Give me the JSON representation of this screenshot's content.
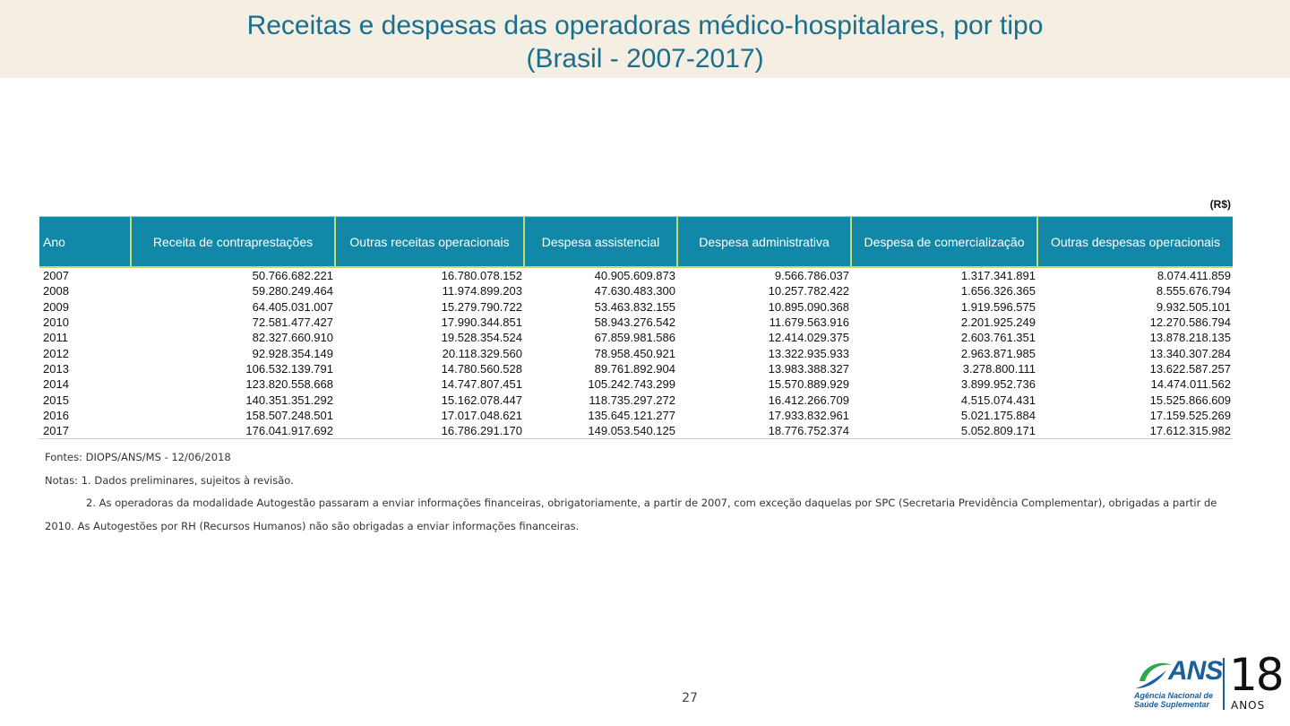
{
  "header": {
    "title_line1": "Receitas e despesas das operadoras médico-hospitalares, por tipo",
    "title_line2": "(Brasil - 2007-2017)"
  },
  "table": {
    "unit": "(R$)",
    "columns": [
      "Ano",
      "Receita de contraprestações",
      "Outras receitas operacionais",
      "Despesa assistencial",
      "Despesa administrativa",
      "Despesa de comercialização",
      "Outras despesas operacionais"
    ],
    "rows": [
      [
        "2007",
        "50.766.682.221",
        "16.780.078.152",
        "40.905.609.873",
        "9.566.786.037",
        "1.317.341.891",
        "8.074.411.859"
      ],
      [
        "2008",
        "59.280.249.464",
        "11.974.899.203",
        "47.630.483.300",
        "10.257.782.422",
        "1.656.326.365",
        "8.555.676.794"
      ],
      [
        "2009",
        "64.405.031.007",
        "15.279.790.722",
        "53.463.832.155",
        "10.895.090.368",
        "1.919.596.575",
        "9.932.505.101"
      ],
      [
        "2010",
        "72.581.477.427",
        "17.990.344.851",
        "58.943.276.542",
        "11.679.563.916",
        "2.201.925.249",
        "12.270.586.794"
      ],
      [
        "2011",
        "82.327.660.910",
        "19.528.354.524",
        "67.859.981.586",
        "12.414.029.375",
        "2.603.761.351",
        "13.878.218.135"
      ],
      [
        "2012",
        "92.928.354.149",
        "20.118.329.560",
        "78.958.450.921",
        "13.322.935.933",
        "2.963.871.985",
        "13.340.307.284"
      ],
      [
        "2013",
        "106.532.139.791",
        "14.780.560.528",
        "89.761.892.904",
        "13.983.388.327",
        "3.278.800.111",
        "13.622.587.257"
      ],
      [
        "2014",
        "123.820.558.668",
        "14.747.807.451",
        "105.242.743.299",
        "15.570.889.929",
        "3.899.952.736",
        "14.474.011.562"
      ],
      [
        "2015",
        "140.351.351.292",
        "15.162.078.447",
        "118.735.297.272",
        "16.412.266.709",
        "4.515.074.431",
        "15.525.866.609"
      ],
      [
        "2016",
        "158.507.248.501",
        "17.017.048.621",
        "135.645.121.277",
        "17.933.832.961",
        "5.021.175.884",
        "17.159.525.269"
      ],
      [
        "2017",
        "176.041.917.692",
        "16.786.291.170",
        "149.053.540.125",
        "18.776.752.374",
        "5.052.809.171",
        "17.612.315.982"
      ]
    ]
  },
  "notes": {
    "source": "Fontes: DIOPS/ANS/MS - 12/06/2018",
    "note1": "Notas: 1. Dados preliminares, sujeitos à revisão.",
    "note2a": "2. As operadoras da modalidade Autogestão passaram a enviar informações financeiras, obrigatoriamente, a partir de 2007, com exceção daquelas por SPC (Secretaria Previdência Complementar), obrigadas a partir de",
    "note2b": "2010. As Autogestões por RH (Recursos Humanos) não são obrigadas a enviar informações financeiras."
  },
  "footer": {
    "page_number": "27",
    "logo_text": "ANS",
    "logo_sub_line1": "Agência Nacional de",
    "logo_sub_line2": "Saúde Suplementar",
    "anniversary_number": "18",
    "anniversary_word": "ANOS",
    "brand_color": "#1a5f9a"
  },
  "colors": {
    "header_bg": "#f5efe3",
    "title": "#1a6f8c",
    "table_header_bg": "#1288a8",
    "table_rule": "#c8d86c"
  }
}
